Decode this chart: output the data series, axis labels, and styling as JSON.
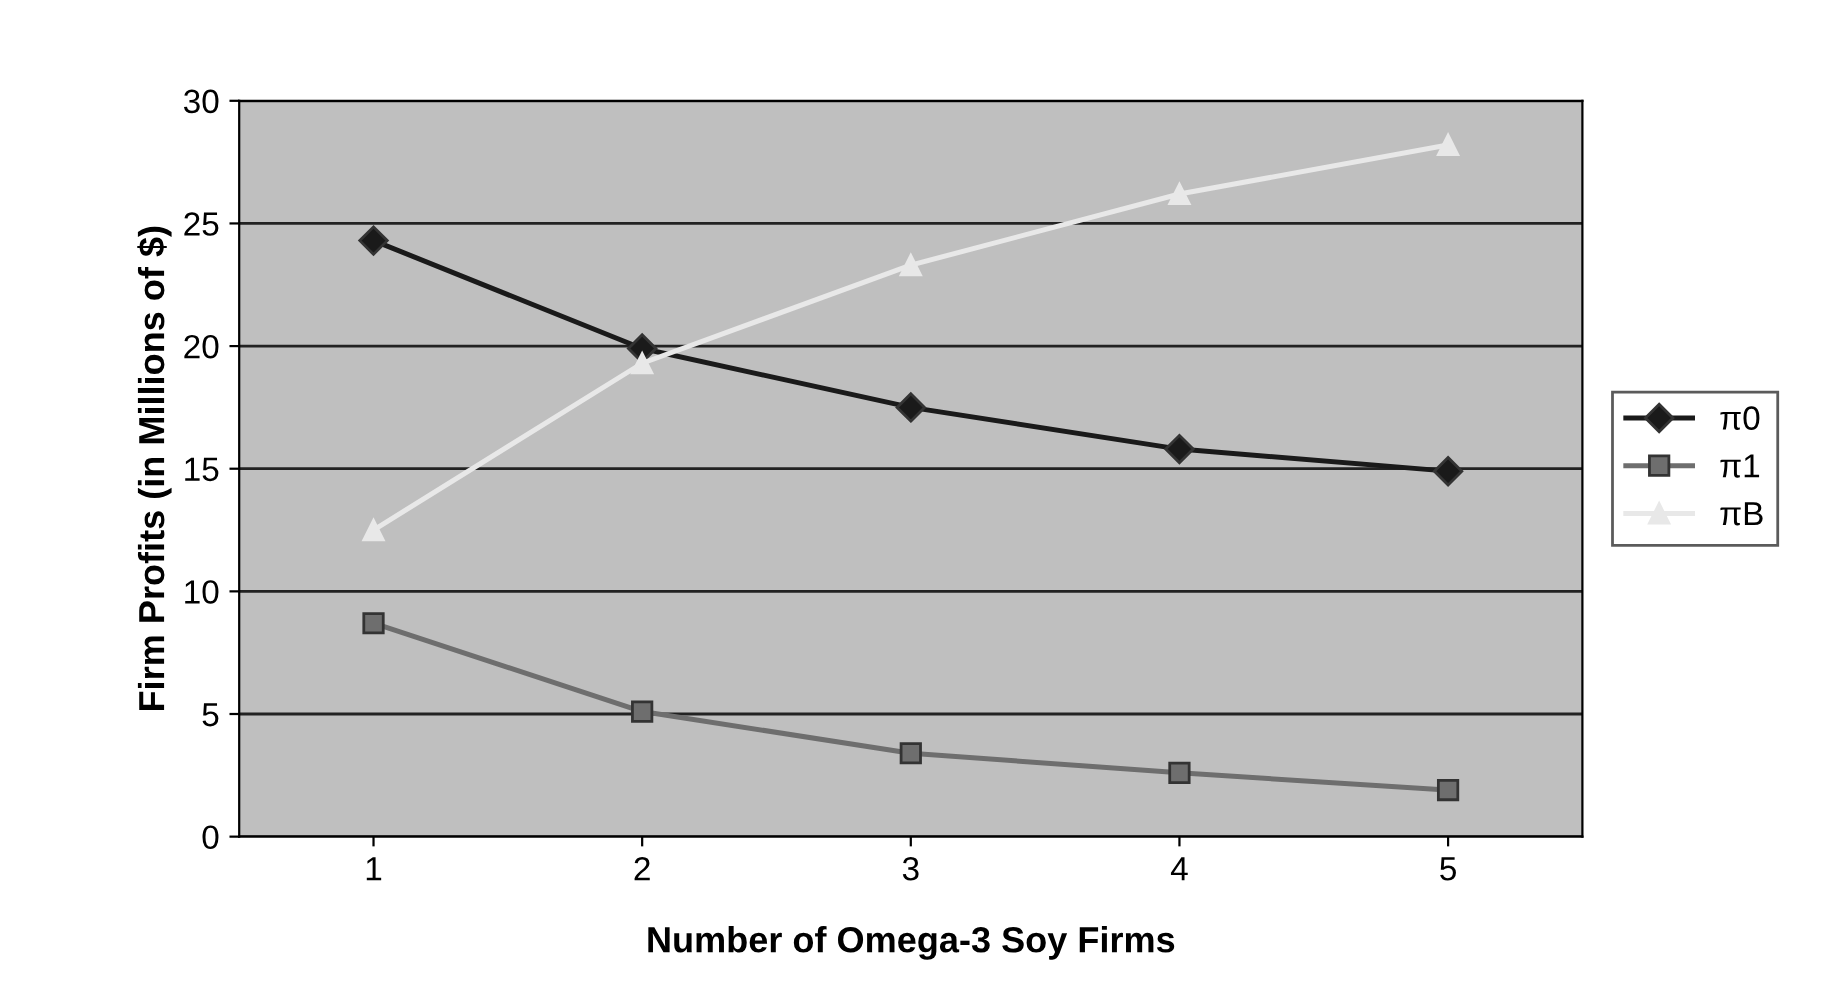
{
  "chart_data": {
    "type": "line",
    "xlabel": "Number of Omega-3 Soy Firms",
    "ylabel": "Firm Profits (in Millions of $)",
    "categories": [
      "1",
      "2",
      "3",
      "4",
      "5"
    ],
    "series": [
      {
        "name": "π0",
        "color": "#1a1a1a",
        "marker": "diamond",
        "values": [
          24.3,
          19.9,
          17.5,
          15.8,
          14.9
        ]
      },
      {
        "name": "π1",
        "color": "#6e6e6e",
        "marker": "square",
        "values": [
          8.7,
          5.1,
          3.4,
          2.6,
          1.9
        ]
      },
      {
        "name": "πB",
        "color": "#e8e8e8",
        "marker": "triangle",
        "values": [
          12.5,
          19.3,
          23.3,
          26.2,
          28.2
        ]
      }
    ],
    "ylim": [
      0,
      30
    ],
    "yticks": [
      0,
      5,
      10,
      15,
      20,
      25,
      30
    ],
    "grid": "y",
    "legend": "right"
  }
}
